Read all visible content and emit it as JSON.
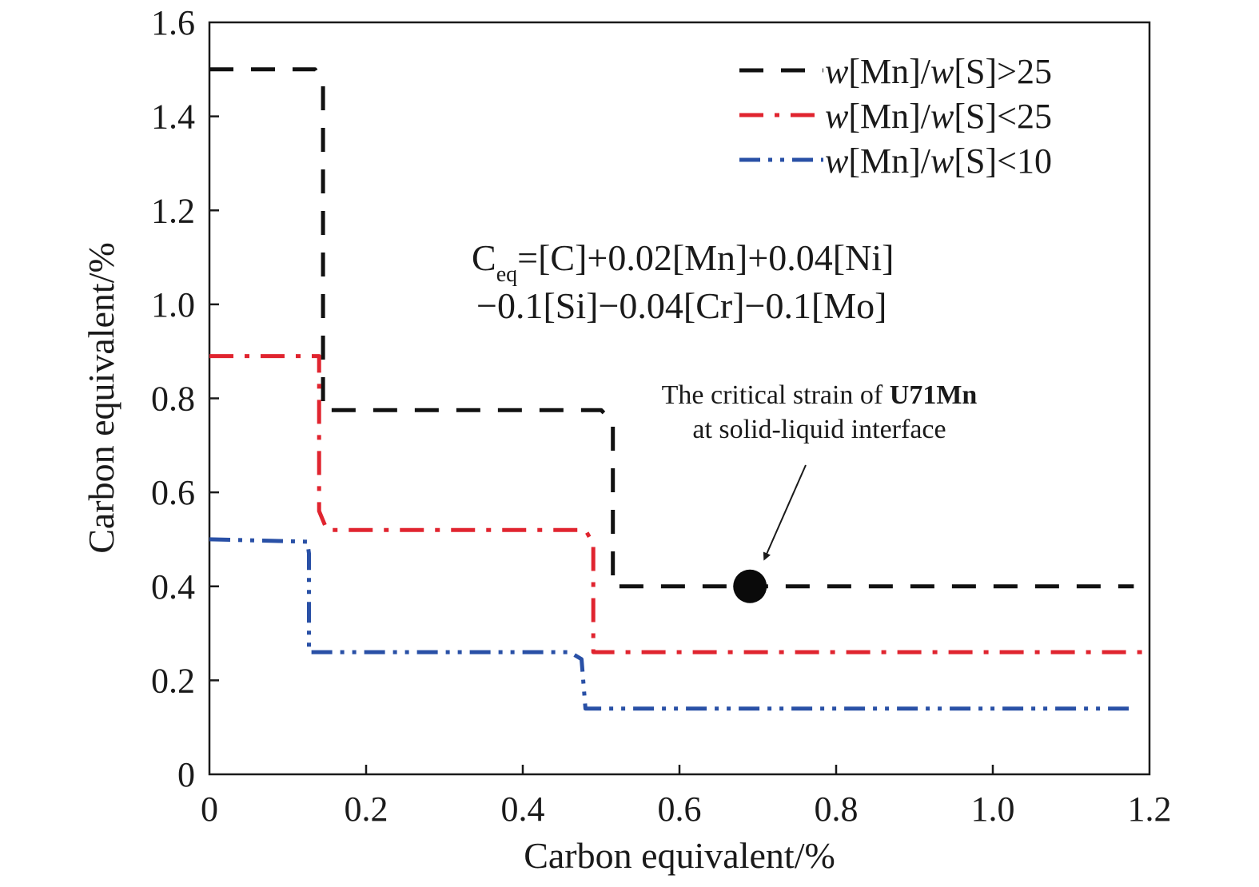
{
  "chart_data": {
    "type": "line",
    "title": "",
    "xlabel": "Carbon equivalent/%",
    "ylabel": "Carbon equivalent/%",
    "xlim": [
      0,
      1.2
    ],
    "ylim": [
      0,
      1.6
    ],
    "x_ticks": [
      "0",
      "0.2",
      "0.4",
      "0.6",
      "0.8",
      "1.0",
      "1.2"
    ],
    "y_ticks": [
      "0",
      "0.2",
      "0.4",
      "0.6",
      "0.8",
      "1.0",
      "1.2",
      "1.4",
      "1.6"
    ],
    "grid": false,
    "legend_position": "top-right",
    "series": [
      {
        "name_prefix": "w",
        "name_mid": "[Mn]/",
        "name_w2": "w",
        "name_suffix": "[S]>25",
        "color": "#111111",
        "style": "dashed",
        "points": [
          [
            0,
            1.5
          ],
          [
            0.135,
            1.5
          ],
          [
            0.145,
            1.47
          ],
          [
            0.145,
            0.775
          ],
          [
            0.5,
            0.775
          ],
          [
            0.515,
            0.75
          ],
          [
            0.515,
            0.4
          ],
          [
            1.18,
            0.4
          ]
        ]
      },
      {
        "name_prefix": "w",
        "name_mid": "[Mn]/",
        "name_w2": "w",
        "name_suffix": "[S]<25",
        "color": "#e0242f",
        "style": "dashdot",
        "points": [
          [
            0,
            0.89
          ],
          [
            0.14,
            0.89
          ],
          [
            0.14,
            0.56
          ],
          [
            0.15,
            0.52
          ],
          [
            0.48,
            0.52
          ],
          [
            0.49,
            0.49
          ],
          [
            0.49,
            0.26
          ],
          [
            1.2,
            0.26
          ]
        ]
      },
      {
        "name_prefix": "w",
        "name_mid": "[Mn]/",
        "name_w2": "w",
        "name_suffix": "[S]<10",
        "color": "#2950a6",
        "style": "dashdotdot",
        "points": [
          [
            0,
            0.5
          ],
          [
            0.125,
            0.495
          ],
          [
            0.127,
            0.47
          ],
          [
            0.127,
            0.26
          ],
          [
            0.46,
            0.26
          ],
          [
            0.475,
            0.245
          ],
          [
            0.48,
            0.14
          ],
          [
            1.18,
            0.14
          ]
        ]
      }
    ],
    "formula": {
      "c": "C",
      "sub": "eq",
      "line1_rest": "=[C]+0.02[Mn]+0.04[Ni]",
      "line2": "−0.1[Si]−0.04[Cr]−0.1[Mo]"
    },
    "annotation": {
      "line1_prefix": "The critical strain of ",
      "line1_bold": "U71Mn",
      "line2": "at solid-liquid interface",
      "point": [
        0.69,
        0.4
      ]
    }
  }
}
